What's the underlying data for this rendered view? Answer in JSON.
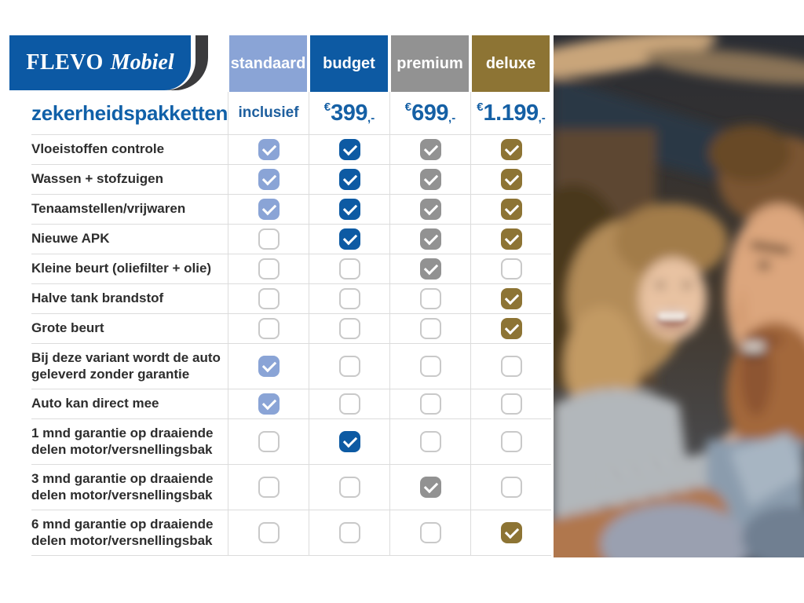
{
  "brand": {
    "name_primary": "FLEVO",
    "name_secondary": "Mobiel"
  },
  "title": "zekerheidspakketten",
  "colors": {
    "standaard": "#8aa4d6",
    "budget": "#0d5aa3",
    "premium": "#929292",
    "deluxe": "#8d7434",
    "logo_blue": "#0c59a4",
    "logo_dark": "#3b3b3d",
    "price_blue": "#1560a5",
    "title_blue": "#1060a8",
    "grid_line": "#dcdcdc"
  },
  "packages": [
    {
      "id": "standaard",
      "label": "standaard",
      "price_text": "inclusief"
    },
    {
      "id": "budget",
      "label": "budget",
      "price_currency": "€",
      "price_amount": "399",
      "price_decimal": ",-"
    },
    {
      "id": "premium",
      "label": "premium",
      "price_currency": "€",
      "price_amount": "699",
      "price_decimal": ",-"
    },
    {
      "id": "deluxe",
      "label": "deluxe",
      "price_currency": "€",
      "price_amount": "1.199",
      "price_decimal": ",-"
    }
  ],
  "features": [
    {
      "label": "Vloeistoffen controle",
      "tall": false,
      "checks": [
        true,
        true,
        true,
        true
      ]
    },
    {
      "label": "Wassen + stofzuigen",
      "tall": false,
      "checks": [
        true,
        true,
        true,
        true
      ]
    },
    {
      "label": "Tenaamstellen/vrijwaren",
      "tall": false,
      "checks": [
        true,
        true,
        true,
        true
      ]
    },
    {
      "label": "Nieuwe APK",
      "tall": false,
      "checks": [
        false,
        true,
        true,
        true
      ]
    },
    {
      "label": "Kleine beurt (oliefilter + olie)",
      "tall": false,
      "checks": [
        false,
        false,
        true,
        false
      ]
    },
    {
      "label": "Halve tank brandstof",
      "tall": false,
      "checks": [
        false,
        false,
        false,
        true
      ]
    },
    {
      "label": "Grote beurt",
      "tall": false,
      "checks": [
        false,
        false,
        false,
        true
      ]
    },
    {
      "label": "Bij deze variant wordt de auto geleverd zonder garantie",
      "tall": true,
      "checks": [
        true,
        false,
        false,
        false
      ]
    },
    {
      "label": "Auto kan direct mee",
      "tall": false,
      "checks": [
        true,
        false,
        false,
        false
      ]
    },
    {
      "label": "1 mnd garantie op draaiende delen motor/versnellingsbak",
      "tall": true,
      "checks": [
        false,
        true,
        false,
        false
      ]
    },
    {
      "label": "3 mnd garantie op draaiende delen motor/versnellingsbak",
      "tall": true,
      "checks": [
        false,
        false,
        true,
        false
      ]
    },
    {
      "label": "6 mnd garantie op draaiende delen motor/versnellingsbak",
      "tall": true,
      "checks": [
        false,
        false,
        false,
        true
      ]
    }
  ],
  "photo": {
    "description": "couple-smiling-in-car"
  }
}
